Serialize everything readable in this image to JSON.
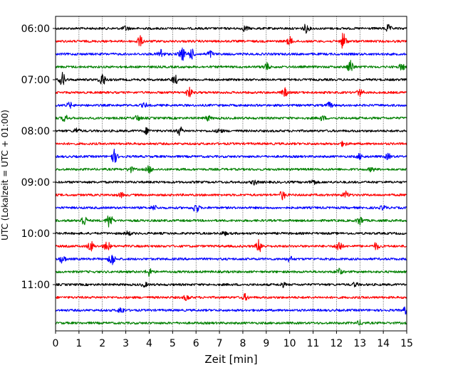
{
  "chart_data": {
    "type": "line",
    "title": "",
    "xlabel": "Zeit  [min]",
    "ylabel": "UTC (Lokalzeit = UTC + 01:00)",
    "xlim": [
      0,
      15
    ],
    "xticks": [
      0,
      1,
      2,
      3,
      4,
      5,
      6,
      7,
      8,
      9,
      10,
      11,
      12,
      13,
      14,
      15
    ],
    "grid": "vertical-dotted",
    "ytick_labels": [
      "06:00",
      "07:00",
      "08:00",
      "09:00",
      "10:00",
      "11:00"
    ],
    "colors": [
      "#000000",
      "#ff0000",
      "#0000ff",
      "#008000"
    ],
    "traces": [
      {
        "label": "06:00",
        "color": "#000000",
        "bursts": [
          [
            3.0,
            0.7
          ],
          [
            8.1,
            0.8
          ],
          [
            10.7,
            1.2
          ],
          [
            14.2,
            1.0
          ]
        ]
      },
      {
        "label": "06:15",
        "color": "#ff0000",
        "bursts": [
          [
            3.6,
            1.5
          ],
          [
            10.0,
            1.2
          ],
          [
            12.3,
            2.5
          ]
        ]
      },
      {
        "label": "06:30",
        "color": "#0000ff",
        "bursts": [
          [
            4.5,
            1.5
          ],
          [
            5.4,
            2.0
          ],
          [
            5.8,
            1.5
          ],
          [
            6.6,
            1.0
          ]
        ]
      },
      {
        "label": "06:45",
        "color": "#008000",
        "bursts": [
          [
            9.0,
            1.2
          ],
          [
            12.6,
            2.0
          ],
          [
            14.8,
            1.0
          ]
        ]
      },
      {
        "label": "07:00",
        "color": "#000000",
        "bursts": [
          [
            0.3,
            2.0
          ],
          [
            2.0,
            2.0
          ],
          [
            5.1,
            1.3
          ]
        ]
      },
      {
        "label": "07:15",
        "color": "#ff0000",
        "bursts": [
          [
            5.7,
            1.5
          ],
          [
            9.8,
            1.2
          ],
          [
            13.0,
            1.0
          ]
        ]
      },
      {
        "label": "07:30",
        "color": "#0000ff",
        "bursts": [
          [
            0.6,
            0.8
          ],
          [
            3.8,
            0.6
          ],
          [
            11.7,
            0.8
          ]
        ]
      },
      {
        "label": "07:45",
        "color": "#008000",
        "bursts": [
          [
            0.4,
            1.0
          ],
          [
            3.5,
            0.8
          ],
          [
            6.5,
            0.7
          ],
          [
            11.4,
            0.7
          ]
        ]
      },
      {
        "label": "08:00",
        "color": "#000000",
        "bursts": [
          [
            0.9,
            0.8
          ],
          [
            3.9,
            0.9
          ],
          [
            5.3,
            1.2
          ],
          [
            7.0,
            0.6
          ]
        ]
      },
      {
        "label": "08:15",
        "color": "#ff0000",
        "bursts": [
          [
            12.3,
            0.7
          ]
        ]
      },
      {
        "label": "08:30",
        "color": "#0000ff",
        "bursts": [
          [
            2.5,
            2.0
          ],
          [
            13.0,
            0.8
          ],
          [
            14.2,
            0.8
          ]
        ]
      },
      {
        "label": "08:45",
        "color": "#008000",
        "bursts": [
          [
            3.2,
            0.8
          ],
          [
            4.0,
            1.0
          ],
          [
            13.5,
            0.6
          ]
        ]
      },
      {
        "label": "09:00",
        "color": "#000000",
        "bursts": [
          [
            8.5,
            0.7
          ],
          [
            11.0,
            0.8
          ]
        ]
      },
      {
        "label": "09:15",
        "color": "#ff0000",
        "bursts": [
          [
            9.7,
            1.3
          ],
          [
            12.4,
            1.0
          ],
          [
            2.8,
            0.6
          ]
        ]
      },
      {
        "label": "09:30",
        "color": "#0000ff",
        "bursts": [
          [
            6.0,
            1.5
          ],
          [
            4.2,
            0.7
          ],
          [
            14.0,
            0.6
          ]
        ]
      },
      {
        "label": "09:45",
        "color": "#008000",
        "bursts": [
          [
            1.2,
            1.6
          ],
          [
            2.3,
            2.3
          ],
          [
            13.0,
            1.3
          ]
        ]
      },
      {
        "label": "10:00",
        "color": "#000000",
        "bursts": [
          [
            3.1,
            0.6
          ],
          [
            7.2,
            0.5
          ]
        ]
      },
      {
        "label": "10:15",
        "color": "#ff0000",
        "bursts": [
          [
            1.5,
            1.5
          ],
          [
            2.2,
            1.5
          ],
          [
            8.7,
            2.0
          ],
          [
            12.1,
            1.8
          ],
          [
            13.7,
            1.0
          ]
        ]
      },
      {
        "label": "10:30",
        "color": "#0000ff",
        "bursts": [
          [
            0.3,
            1.2
          ],
          [
            2.4,
            2.0
          ],
          [
            10.0,
            0.8
          ]
        ]
      },
      {
        "label": "10:45",
        "color": "#008000",
        "bursts": [
          [
            4.0,
            1.2
          ],
          [
            12.1,
            1.0
          ]
        ]
      },
      {
        "label": "11:00",
        "color": "#000000",
        "bursts": [
          [
            3.8,
            0.6
          ],
          [
            9.7,
            0.6
          ],
          [
            12.8,
            0.6
          ]
        ]
      },
      {
        "label": "11:15",
        "color": "#ff0000",
        "bursts": [
          [
            5.6,
            0.8
          ],
          [
            8.1,
            0.9
          ]
        ]
      },
      {
        "label": "11:30",
        "color": "#0000ff",
        "bursts": [
          [
            2.8,
            1.0
          ],
          [
            15.0,
            1.5
          ]
        ]
      },
      {
        "label": "11:45",
        "color": "#008000",
        "bursts": [
          [
            13.0,
            0.6
          ]
        ]
      }
    ]
  }
}
